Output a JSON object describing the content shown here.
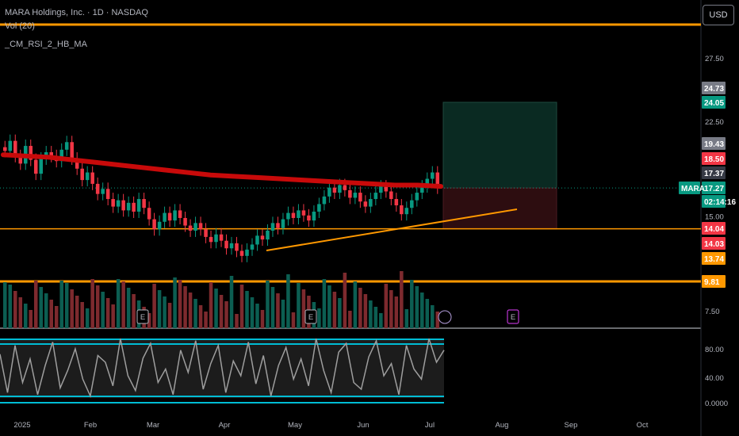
{
  "header": {
    "symbol_line": "MARA Holdings, Inc. · 1D · NASDAQ",
    "indicator_1": "Vol (20)",
    "indicator_2": "_CM_RSI_2_HB_MA",
    "currency_button": "USD"
  },
  "chart_data": {
    "type": "candlestick",
    "symbol": "MARA",
    "x_axis_ticks": [
      "2025",
      "Feb",
      "Mar",
      "Apr",
      "May",
      "Jun",
      "Jul",
      "Aug",
      "Sep",
      "Oct"
    ],
    "y_axis_ticks": [
      27.5,
      22.5,
      15.0,
      7.5
    ],
    "rsi_axis_ticks": [
      "80.00",
      "40.00",
      "0.0000"
    ],
    "ohlc_close_approx": [
      20.2,
      21.0,
      19.8,
      19.2,
      20.6,
      19.5,
      18.4,
      19.6,
      20.1,
      19.8,
      19.4,
      20.3,
      20.9,
      19.6,
      18.8,
      17.9,
      18.5,
      17.6,
      16.8,
      17.2,
      16.4,
      15.8,
      16.3,
      15.5,
      16.1,
      15.4,
      16.4,
      15.7,
      14.8,
      14.0,
      14.6,
      15.3,
      14.7,
      15.5,
      14.9,
      14.3,
      13.9,
      14.5,
      14.0,
      13.4,
      13.0,
      13.6,
      13.1,
      12.5,
      12.9,
      12.3,
      11.9,
      12.4,
      12.8,
      13.5,
      13.2,
      13.9,
      14.5,
      14.1,
      14.8,
      15.3,
      14.9,
      15.5,
      15.1,
      14.7,
      15.4,
      16.0,
      16.6,
      17.3,
      16.9,
      17.5,
      17.1,
      16.5,
      16.9,
      16.2,
      15.8,
      16.4,
      16.9,
      17.4,
      17.0,
      16.4,
      15.9,
      15.2,
      15.7,
      16.3,
      16.9,
      17.4,
      18.0,
      18.5,
      17.3
    ],
    "moving_average_200": [
      19.9,
      19.8,
      19.7,
      19.5,
      19.3,
      19.1,
      18.9,
      18.7,
      18.5,
      18.3,
      18.2,
      18.1,
      18.0,
      17.9,
      17.8,
      17.7,
      17.6,
      17.5,
      17.5,
      17.4
    ],
    "rsi_values": [
      72,
      15,
      85,
      30,
      65,
      12,
      55,
      90,
      22,
      48,
      80,
      35,
      10,
      70,
      60,
      25,
      95,
      40,
      18,
      66,
      88,
      30,
      50,
      12,
      78,
      45,
      92,
      20,
      58,
      85,
      15,
      62,
      40,
      90,
      28,
      70,
      10,
      55,
      82,
      35,
      65,
      25,
      95,
      48,
      15,
      75,
      88,
      30,
      20,
      68,
      92,
      40,
      58,
      12,
      85,
      50,
      35,
      95,
      60,
      78
    ],
    "price_labels": [
      {
        "value": "24.73",
        "color": "#787b86"
      },
      {
        "value": "24.05",
        "color": "#089981"
      },
      {
        "value": "19.43",
        "color": "#787b86"
      },
      {
        "value": "18.50",
        "color": "#f23645"
      },
      {
        "value": "17.37",
        "color": "#363a45"
      },
      {
        "value": "17.27",
        "color": "#089981"
      },
      {
        "value": "02:14:16",
        "color": "#089981"
      },
      {
        "value": "14.04",
        "color": "#f23645"
      },
      {
        "value": "14.03",
        "color": "#f23645"
      },
      {
        "value": "13.74",
        "color": "#ff9800"
      },
      {
        "value": "9.81",
        "color": "#ff9800"
      }
    ],
    "symbol_tag": "MARA",
    "horizontal_levels": [
      27.5,
      14.04,
      9.81
    ],
    "position_tool": {
      "entry": 17.27,
      "target": 24.05,
      "stop": 14.03
    },
    "earnings_markers": [
      "E",
      "E",
      "E"
    ],
    "colors": {
      "up": "#089981",
      "down": "#f23645",
      "ma": "#c80a0a",
      "level": "#ff9800",
      "rsi_band": "#00bcd4"
    }
  }
}
